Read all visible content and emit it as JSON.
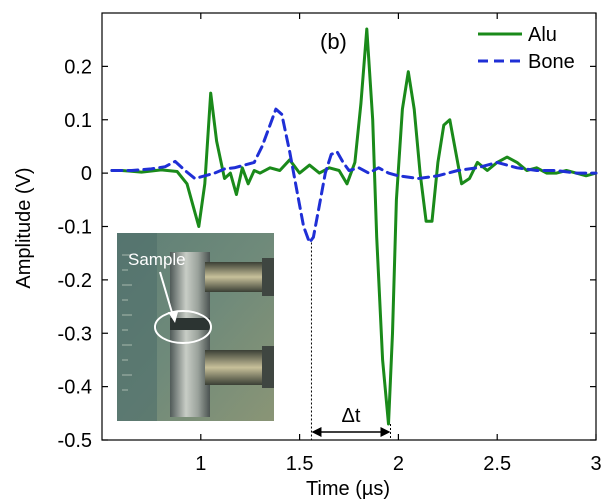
{
  "chart_data": {
    "type": "line",
    "panel_label": "(b)",
    "xlabel": "Time (µs)",
    "ylabel": "Amplitude (V)",
    "xlim": [
      0.5,
      3.0
    ],
    "ylim": [
      -0.5,
      0.3
    ],
    "xticks": [
      1,
      1.5,
      2,
      2.5,
      3
    ],
    "xtick_labels": [
      "1",
      "1.5",
      "2",
      "2.5",
      "3"
    ],
    "yticks": [
      0.2,
      0.1,
      0,
      -0.1,
      -0.2,
      -0.3,
      -0.4,
      -0.5
    ],
    "ytick_labels": [
      "0.2",
      "0.1",
      "0",
      "-0.1",
      "-0.2",
      "-0.3",
      "-0.4",
      "-0.5"
    ],
    "grid": false,
    "legend_position": "top-right",
    "series": [
      {
        "name": "Alu",
        "color": "#1a8a1a",
        "style": "solid",
        "x": [
          0.55,
          0.6,
          0.7,
          0.8,
          0.88,
          0.93,
          0.96,
          0.99,
          1.02,
          1.05,
          1.08,
          1.12,
          1.15,
          1.18,
          1.21,
          1.24,
          1.27,
          1.3,
          1.35,
          1.4,
          1.45,
          1.5,
          1.55,
          1.6,
          1.65,
          1.7,
          1.74,
          1.78,
          1.81,
          1.84,
          1.87,
          1.89,
          1.92,
          1.95,
          1.97,
          1.99,
          2.02,
          2.05,
          2.08,
          2.11,
          2.14,
          2.17,
          2.2,
          2.23,
          2.26,
          2.29,
          2.32,
          2.36,
          2.4,
          2.45,
          2.5,
          2.55,
          2.6,
          2.65,
          2.7,
          2.75,
          2.8,
          2.85,
          2.9,
          2.95,
          3.0
        ],
        "y": [
          0.005,
          0.005,
          0.002,
          0.006,
          0.003,
          -0.02,
          -0.06,
          -0.1,
          -0.02,
          0.15,
          0.06,
          -0.01,
          0.0,
          -0.04,
          0.01,
          -0.02,
          0.005,
          0.0,
          0.01,
          0.005,
          0.025,
          0.0,
          0.015,
          0.0,
          0.01,
          0.005,
          -0.02,
          0.02,
          0.13,
          0.27,
          0.1,
          -0.12,
          -0.35,
          -0.47,
          -0.3,
          -0.05,
          0.12,
          0.19,
          0.12,
          0.0,
          -0.09,
          -0.09,
          0.02,
          0.09,
          0.1,
          0.04,
          -0.02,
          -0.01,
          0.02,
          0.005,
          0.02,
          0.03,
          0.02,
          0.005,
          0.01,
          0.0,
          0.0,
          0.005,
          0.0,
          -0.005,
          0.0
        ]
      },
      {
        "name": "Bone",
        "color": "#1f2fd6",
        "style": "dashed",
        "x": [
          0.55,
          0.65,
          0.75,
          0.82,
          0.87,
          0.92,
          0.97,
          1.02,
          1.07,
          1.12,
          1.17,
          1.22,
          1.27,
          1.31,
          1.35,
          1.38,
          1.41,
          1.45,
          1.49,
          1.52,
          1.55,
          1.57,
          1.6,
          1.63,
          1.66,
          1.69,
          1.72,
          1.75,
          1.8,
          1.85,
          1.9,
          1.95,
          2.0,
          2.1,
          2.2,
          2.3,
          2.4,
          2.5,
          2.6,
          2.7,
          2.8,
          2.9,
          3.0
        ],
        "y": [
          0.005,
          0.005,
          0.008,
          0.012,
          0.022,
          0.005,
          -0.01,
          -0.005,
          0.0,
          0.008,
          0.01,
          0.015,
          0.02,
          0.05,
          0.09,
          0.12,
          0.11,
          0.04,
          -0.04,
          -0.1,
          -0.13,
          -0.12,
          -0.06,
          0.0,
          0.035,
          0.04,
          0.02,
          0.005,
          0.01,
          0.0,
          0.01,
          0.0,
          -0.005,
          -0.01,
          -0.005,
          0.005,
          0.01,
          0.02,
          0.01,
          0.005,
          0.005,
          0.0,
          0.0
        ]
      }
    ],
    "annotations": {
      "delta_label": "Δt",
      "delta_start_x": 1.56,
      "delta_end_x": 1.96,
      "bone_peak_y": -0.13,
      "alu_peak_y": -0.47,
      "inset_label": "Sample"
    }
  }
}
